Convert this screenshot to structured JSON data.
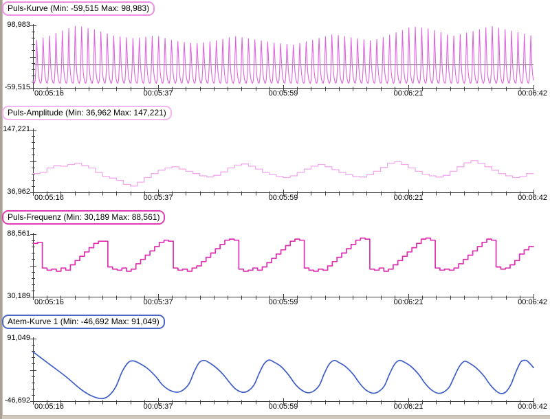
{
  "window": {
    "left_border_color": "#aaa296",
    "bottom_scrollbar_color": "#d0c8bc"
  },
  "axes": {
    "axis_color": "#3c3c3c",
    "x_tick_labels": [
      "00:05:16",
      "00:05:37",
      "00:05:59",
      "00:06:21",
      "00:06:42"
    ]
  },
  "chart_data": [
    {
      "id": "puls-kurve",
      "type": "pulse",
      "title": "Puls-Kurve (Min: -59,515 Max: 98,983)",
      "min": -59515,
      "max": 98983,
      "min_label": "-59,515",
      "max_label": "98,983",
      "x_ticks": [
        "00:05:16",
        "00:05:37",
        "00:05:59",
        "00:06:21",
        "00:06:42"
      ],
      "line_color": "#de64de",
      "box_border_color": "#ee8fe2",
      "stroke_width": 1.1,
      "zero_line": true,
      "zero_line_color": "#555555",
      "pulse": {
        "beats": 78,
        "peak_value": 98983,
        "neg_scale": 100000,
        "envelope": [
          0.62,
          0.8,
          0.99,
          0.88,
          0.72,
          0.66,
          0.74,
          0.6,
          0.53,
          0.6,
          0.72,
          0.64,
          0.55,
          0.5,
          0.63,
          0.77,
          0.68,
          0.6,
          0.78,
          0.97,
          0.9,
          0.72,
          0.84,
          0.98,
          0.86,
          0.74
        ],
        "beat_shape": [
          [
            0.0,
            -0.4
          ],
          [
            0.1,
            -0.46
          ],
          [
            0.22,
            -0.48
          ],
          [
            0.34,
            -0.4
          ],
          [
            0.44,
            -0.1
          ],
          [
            0.52,
            0.62
          ],
          [
            0.58,
            1.0
          ],
          [
            0.66,
            0.52
          ],
          [
            0.74,
            0.02
          ],
          [
            0.84,
            -0.22
          ],
          [
            0.93,
            -0.34
          ],
          [
            1.0,
            -0.4
          ]
        ]
      }
    },
    {
      "id": "puls-amplitude",
      "type": "step",
      "title": "Puls-Amplitude (Min: 36,962 Max: 147,221)",
      "min": 36962,
      "max": 147221,
      "min_label": "36,962",
      "max_label": "147,221",
      "x_ticks": [
        "00:05:16",
        "00:05:37",
        "00:05:59",
        "00:06:21",
        "00:06:42"
      ],
      "line_color": "#f2a8ec",
      "box_border_color": "#f4b4ec",
      "stroke_width": 1.3,
      "zero_line": false,
      "samples": [
        70000,
        72000,
        80000,
        84000,
        83000,
        86000,
        88000,
        84000,
        80000,
        72000,
        65000,
        62000,
        58000,
        51000,
        48000,
        55000,
        63000,
        70000,
        76000,
        80000,
        82000,
        78000,
        74000,
        70000,
        66000,
        64000,
        67000,
        73000,
        80000,
        85000,
        87000,
        83000,
        78000,
        72000,
        68000,
        65000,
        63000,
        66000,
        72000,
        78000,
        83000,
        86000,
        82000,
        77000,
        72000,
        68000,
        65000,
        64000,
        68000,
        74000,
        81000,
        88000,
        91000,
        86000,
        80000,
        74000,
        69000,
        66000,
        64000,
        67000,
        74000,
        82000,
        89000,
        93000,
        88000,
        82000,
        76000,
        70000,
        66000,
        63000,
        65000,
        70000
      ]
    },
    {
      "id": "puls-frequenz",
      "type": "step",
      "title": "Puls-Frequenz (Min: 30,189 Max: 88,561)",
      "min": 30189,
      "max": 88561,
      "min_label": "30,189",
      "max_label": "88,561",
      "x_ticks": [
        "00:05:16",
        "00:05:37",
        "00:05:59",
        "00:06:21",
        "00:06:42"
      ],
      "line_color": "#dd2fb0",
      "box_border_color": "#e23cb4",
      "stroke_width": 1.7,
      "zero_line": false,
      "samples": [
        80000,
        81000,
        57000,
        55000,
        56000,
        54000,
        57000,
        55000,
        60000,
        64000,
        68000,
        72000,
        76000,
        80000,
        82000,
        82000,
        58000,
        56000,
        55000,
        57000,
        54000,
        56000,
        61000,
        65000,
        69000,
        73000,
        77000,
        81000,
        83000,
        82000,
        57000,
        55000,
        56000,
        54000,
        57000,
        59000,
        63000,
        67000,
        71000,
        75000,
        79000,
        83000,
        84000,
        83000,
        56000,
        54000,
        55000,
        57000,
        55000,
        58000,
        62000,
        66000,
        70000,
        74000,
        78000,
        82000,
        84000,
        83000,
        57000,
        55000,
        54000,
        56000,
        55000,
        59000,
        63000,
        67000,
        71000,
        75000,
        79000,
        83000,
        85000,
        84000,
        56000,
        55000,
        57000,
        54000,
        56000,
        60000,
        64000,
        68000,
        72000,
        76000,
        80000,
        84000,
        85000,
        83000,
        57000,
        55000,
        56000,
        55000,
        57000,
        61000,
        65000,
        69000,
        73000,
        77000,
        81000,
        84000,
        83000,
        58000,
        56000,
        57000,
        60000,
        64000,
        70000,
        74000,
        77000
      ]
    },
    {
      "id": "atem-kurve-1",
      "type": "smooth",
      "title": "Atem-Kurve 1 (Min: -46,692 Max: 91,049)",
      "min": -46692,
      "max": 91049,
      "min_label": "-46,692",
      "max_label": "91,049",
      "x_ticks": [
        "00:05:16",
        "00:05:37",
        "00:05:59",
        "00:06:21",
        "00:06:42"
      ],
      "line_color": "#3d5cc5",
      "box_border_color": "#4a66c8",
      "stroke_width": 1.7,
      "zero_line": false,
      "points": [
        [
          0.0,
          62000
        ],
        [
          0.012,
          52000
        ],
        [
          0.035,
          33000
        ],
        [
          0.065,
          8000
        ],
        [
          0.095,
          -20000
        ],
        [
          0.115,
          -34000
        ],
        [
          0.135,
          -41000
        ],
        [
          0.15,
          -36000
        ],
        [
          0.165,
          -16000
        ],
        [
          0.178,
          18000
        ],
        [
          0.19,
          38000
        ],
        [
          0.2,
          42000
        ],
        [
          0.212,
          37000
        ],
        [
          0.228,
          26000
        ],
        [
          0.245,
          8000
        ],
        [
          0.258,
          -10000
        ],
        [
          0.272,
          -22000
        ],
        [
          0.288,
          -27000
        ],
        [
          0.3,
          -22000
        ],
        [
          0.312,
          -8000
        ],
        [
          0.322,
          18000
        ],
        [
          0.332,
          38000
        ],
        [
          0.342,
          43000
        ],
        [
          0.352,
          38000
        ],
        [
          0.365,
          28000
        ],
        [
          0.38,
          12000
        ],
        [
          0.393,
          -6000
        ],
        [
          0.405,
          -20000
        ],
        [
          0.418,
          -27000
        ],
        [
          0.43,
          -24000
        ],
        [
          0.442,
          -10000
        ],
        [
          0.452,
          15000
        ],
        [
          0.462,
          36000
        ],
        [
          0.472,
          44000
        ],
        [
          0.482,
          39000
        ],
        [
          0.495,
          30000
        ],
        [
          0.51,
          12000
        ],
        [
          0.523,
          -8000
        ],
        [
          0.535,
          -21000
        ],
        [
          0.548,
          -28000
        ],
        [
          0.56,
          -25000
        ],
        [
          0.572,
          -12000
        ],
        [
          0.582,
          14000
        ],
        [
          0.592,
          35000
        ],
        [
          0.602,
          43000
        ],
        [
          0.612,
          38000
        ],
        [
          0.625,
          29000
        ],
        [
          0.64,
          12000
        ],
        [
          0.653,
          -8000
        ],
        [
          0.665,
          -22000
        ],
        [
          0.678,
          -29000
        ],
        [
          0.69,
          -26000
        ],
        [
          0.702,
          -13000
        ],
        [
          0.712,
          12000
        ],
        [
          0.722,
          34000
        ],
        [
          0.732,
          43000
        ],
        [
          0.742,
          39000
        ],
        [
          0.755,
          30000
        ],
        [
          0.77,
          13000
        ],
        [
          0.783,
          -7000
        ],
        [
          0.795,
          -21000
        ],
        [
          0.808,
          -29000
        ],
        [
          0.82,
          -27000
        ],
        [
          0.832,
          -15000
        ],
        [
          0.842,
          8000
        ],
        [
          0.852,
          30000
        ],
        [
          0.862,
          41000
        ],
        [
          0.872,
          37000
        ],
        [
          0.885,
          27000
        ],
        [
          0.9,
          10000
        ],
        [
          0.913,
          -10000
        ],
        [
          0.925,
          -24000
        ],
        [
          0.935,
          -30000
        ],
        [
          0.945,
          -26000
        ],
        [
          0.955,
          -10000
        ],
        [
          0.965,
          18000
        ],
        [
          0.975,
          40000
        ],
        [
          0.985,
          43000
        ],
        [
          0.993,
          36000
        ],
        [
          1.0,
          27000
        ]
      ]
    }
  ]
}
